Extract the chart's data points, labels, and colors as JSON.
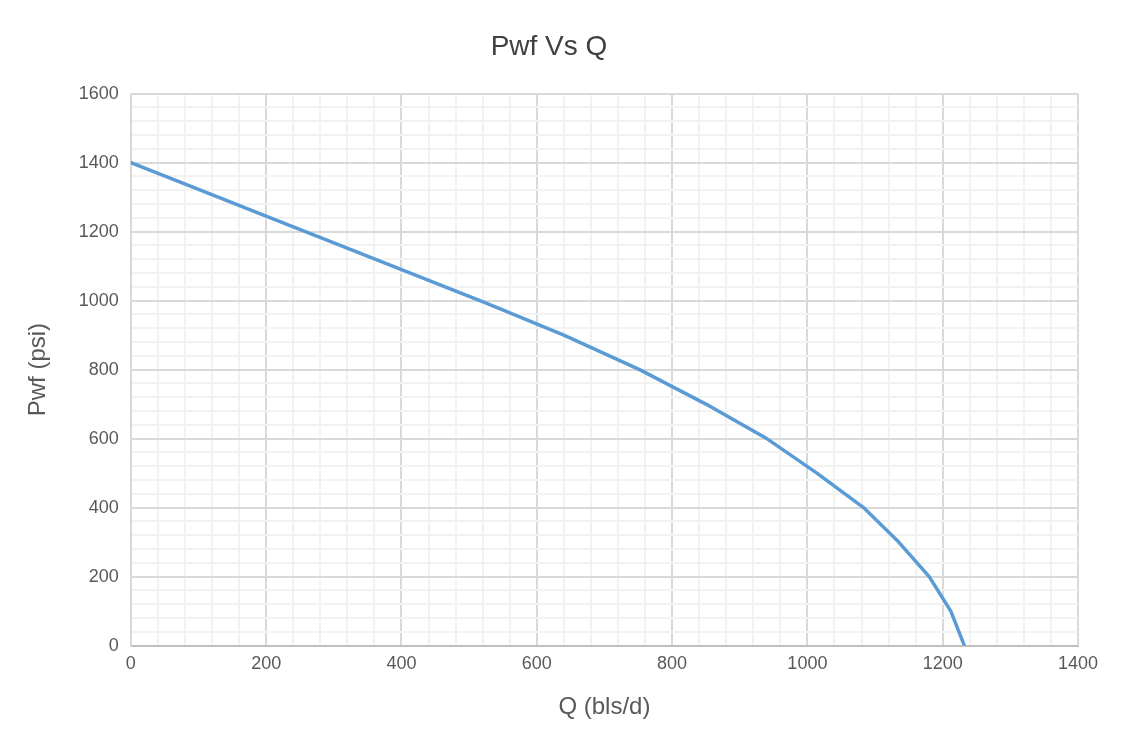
{
  "chart_data": {
    "type": "line",
    "title": "Pwf Vs Q",
    "xlabel": "Q (bls/d)",
    "ylabel": "Pwf (psi)",
    "x": [
      0,
      129,
      258,
      387,
      516,
      640,
      752,
      850,
      940,
      1014,
      1083,
      1135,
      1180,
      1212,
      1232
    ],
    "series": [
      {
        "color": "#5b9bd5",
        "values": [
          1400,
          1300,
          1200,
          1100,
          1000,
          900,
          800,
          700,
          600,
          500,
          400,
          300,
          200,
          100,
          0
        ]
      }
    ],
    "xlim": [
      0,
      1400
    ],
    "ylim": [
      0,
      1600
    ],
    "xticks": [
      0,
      {
        "value": 40,
        "label": null
      },
      {
        "value": 80,
        "label": null
      },
      {
        "value": 120,
        "label": null
      },
      {
        "value": 160,
        "label": null
      },
      200,
      {
        "value": 240,
        "label": null
      },
      {
        "value": 280,
        "label": null
      },
      {
        "value": 320,
        "label": null
      },
      {
        "value": 360,
        "label": null
      },
      400,
      {
        "value": 440,
        "label": null
      },
      {
        "value": 480,
        "label": null
      },
      {
        "value": 520,
        "label": null
      },
      {
        "value": 560,
        "label": null
      },
      600,
      {
        "value": 640,
        "label": null
      },
      {
        "value": 680,
        "label": null
      },
      {
        "value": 720,
        "label": null
      },
      {
        "value": 760,
        "label": null
      },
      800,
      {
        "value": 840,
        "label": null
      },
      {
        "value": 880,
        "label": null
      },
      {
        "value": 920,
        "label": null
      },
      {
        "value": 960,
        "label": null
      },
      1000,
      {
        "value": 1040,
        "label": null
      },
      {
        "value": 1080,
        "label": null
      },
      {
        "value": 1120,
        "label": null
      },
      {
        "value": 1160,
        "label": null
      },
      1200,
      {
        "value": 1240,
        "label": null
      },
      {
        "value": 1280,
        "label": null
      },
      {
        "value": 1320,
        "label": null
      },
      {
        "value": 1360,
        "label": null
      },
      1400
    ],
    "yticks": [
      0,
      {
        "value": 40,
        "label": null
      },
      {
        "value": 80,
        "label": null
      },
      {
        "value": 120,
        "label": null
      },
      {
        "value": 160,
        "label": null
      },
      200,
      {
        "value": 240,
        "label": null
      },
      {
        "value": 280,
        "label": null
      },
      {
        "value": 320,
        "label": null
      },
      {
        "value": 360,
        "label": null
      },
      400,
      {
        "value": 440,
        "label": null
      },
      {
        "value": 480,
        "label": null
      },
      {
        "value": 520,
        "label": null
      },
      {
        "value": 560,
        "label": null
      },
      600,
      {
        "value": 640,
        "label": null
      },
      {
        "value": 680,
        "label": null
      },
      {
        "value": 720,
        "label": null
      },
      {
        "value": 760,
        "label": null
      },
      800,
      {
        "value": 840,
        "label": null
      },
      {
        "value": 880,
        "label": null
      },
      {
        "value": 920,
        "label": null
      },
      {
        "value": 960,
        "label": null
      },
      1000,
      {
        "value": 1040,
        "label": null
      },
      {
        "value": 1080,
        "label": null
      },
      {
        "value": 1120,
        "label": null
      },
      {
        "value": 1160,
        "label": null
      },
      1200,
      {
        "value": 1240,
        "label": null
      },
      {
        "value": 1280,
        "label": null
      },
      {
        "value": 1320,
        "label": null
      },
      {
        "value": 1360,
        "label": null
      },
      1400,
      {
        "value": 1440,
        "label": null
      },
      {
        "value": 1480,
        "label": null
      },
      {
        "value": 1520,
        "label": null
      },
      {
        "value": 1560,
        "label": null
      },
      1600
    ],
    "grid": true,
    "marker": "none",
    "line_style": "solid",
    "legend": false
  }
}
